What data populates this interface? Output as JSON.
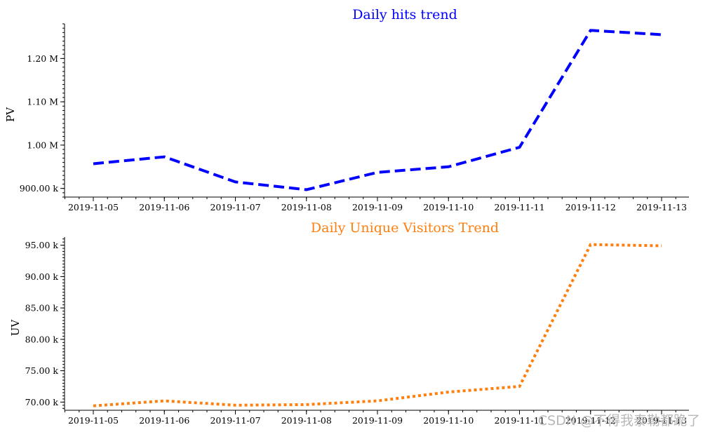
{
  "chart_data": [
    {
      "type": "line",
      "title": "Daily hits trend",
      "title_color": "#0000ff",
      "xlabel": "",
      "ylabel": "PV",
      "categories": [
        "2019-11-05",
        "2019-11-06",
        "2019-11-07",
        "2019-11-08",
        "2019-11-09",
        "2019-11-10",
        "2019-11-11",
        "2019-11-12",
        "2019-11-13"
      ],
      "series": [
        {
          "color": "#0000ff",
          "line_style": "dashed",
          "values": [
            957000,
            973000,
            915000,
            897000,
            937000,
            950000,
            995000,
            1265000,
            1255000
          ]
        }
      ],
      "ylim": [
        880000,
        1280000
      ],
      "yticks": [
        900000,
        1000000,
        1100000,
        1200000
      ],
      "ytick_labels": [
        "900.00 k",
        "1.00 M",
        "1.10 M",
        "1.20 M"
      ],
      "grid": false
    },
    {
      "type": "line",
      "title": "Daily Unique Visitors Trend",
      "title_color": "#ff7f0e",
      "xlabel": "",
      "ylabel": "UV",
      "categories": [
        "2019-11-05",
        "2019-11-06",
        "2019-11-07",
        "2019-11-08",
        "2019-11-09",
        "2019-11-10",
        "2019-11-11",
        "2019-11-12",
        "2019-11-13"
      ],
      "series": [
        {
          "color": "#ff7f0e",
          "line_style": "dotted",
          "values": [
            69400,
            70200,
            69500,
            69600,
            70200,
            71600,
            72500,
            95100,
            94900
          ]
        }
      ],
      "ylim": [
        68700,
        96300
      ],
      "yticks": [
        70000,
        75000,
        80000,
        85000,
        90000,
        95000
      ],
      "ytick_labels": [
        "70.00 k",
        "75.00 k",
        "80.00 k",
        "85.00 k",
        "90.00 k",
        "95.00 k"
      ],
      "grid": false
    }
  ],
  "watermark": "CSDN @不得我泰勒都跪了"
}
